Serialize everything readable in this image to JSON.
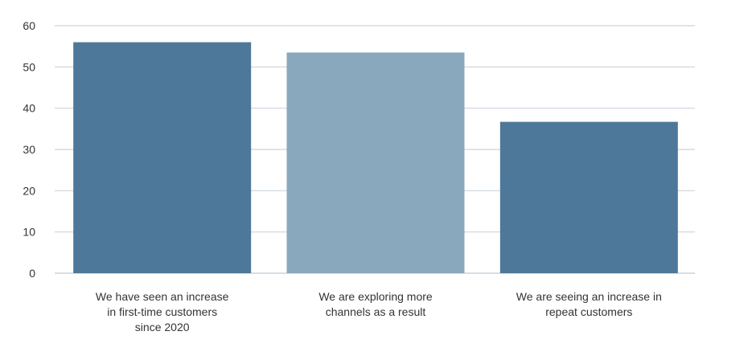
{
  "chart_data": {
    "type": "bar",
    "categories": [
      [
        "We have seen an increase",
        "in first-time customers",
        "since 2020"
      ],
      [
        "We are exploring more",
        "channels as a result"
      ],
      [
        "We are seeing an increase in",
        "repeat customers"
      ]
    ],
    "values": [
      56,
      53.5,
      36.7
    ],
    "bar_colors": [
      "#4e7899",
      "#89a7bd",
      "#4e7899"
    ],
    "yticks": [
      "0",
      "10",
      "20",
      "30",
      "40",
      "50",
      "60"
    ],
    "ylim": [
      0,
      60
    ],
    "grid": true,
    "grid_color": "#c9d4de",
    "title": "",
    "xlabel": "",
    "ylabel": ""
  }
}
